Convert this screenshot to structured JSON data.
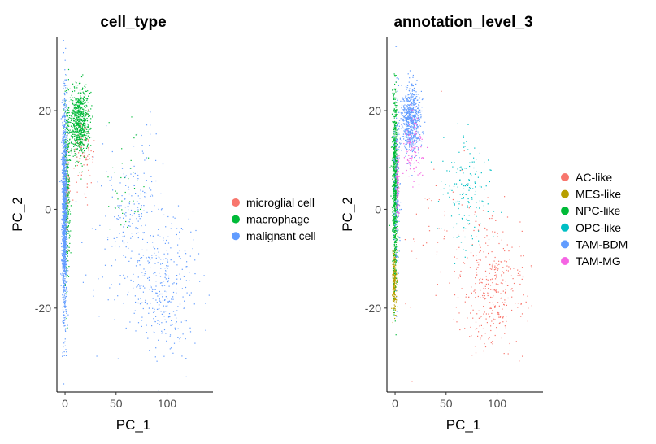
{
  "chart_data": [
    {
      "type": "scatter",
      "title": "cell_type",
      "xlabel": "PC_1",
      "ylabel": "PC_2",
      "x_ticks": [
        0,
        50,
        100
      ],
      "y_ticks": [
        20,
        0,
        -20
      ],
      "xlim": [
        -8,
        145
      ],
      "ylim": [
        -37,
        35
      ],
      "grid": false,
      "legend_position": "right",
      "series": [
        {
          "name": "microglial cell",
          "color": "#F8766D",
          "clusters": [
            {
              "x": 1,
              "y": 3,
              "sx": 1.5,
              "sy": 5,
              "n": 120
            },
            {
              "x": 17,
              "y": 12,
              "sx": 5,
              "sy": 3.5,
              "n": 90
            }
          ]
        },
        {
          "name": "macrophage",
          "color": "#00BA38",
          "clusters": [
            {
              "x": 14,
              "y": 18,
              "sx": 5,
              "sy": 3.5,
              "n": 700
            },
            {
              "x": 1.5,
              "y": 5,
              "sx": 1.5,
              "sy": 9,
              "n": 350
            },
            {
              "x": 60,
              "y": 6,
              "sx": 12,
              "sy": 5,
              "n": 40
            }
          ]
        },
        {
          "name": "malignant cell",
          "color": "#619CFF",
          "clusters": [
            {
              "x": -1,
              "y": 0,
              "sx": 1.2,
              "sy": 11,
              "n": 1300
            },
            {
              "x": 97,
              "y": -16,
              "sx": 15,
              "sy": 7,
              "n": 330
            },
            {
              "x": 68,
              "y": 1,
              "sx": 14,
              "sy": 7,
              "n": 140
            },
            {
              "x": 45,
              "y": -8,
              "sx": 18,
              "sy": 10,
              "n": 60
            }
          ]
        }
      ]
    },
    {
      "type": "scatter",
      "title": "annotation_level_3",
      "xlabel": "PC_1",
      "ylabel": "PC_2",
      "x_ticks": [
        0,
        50,
        100
      ],
      "y_ticks": [
        20,
        0,
        -20
      ],
      "xlim": [
        -8,
        145
      ],
      "ylim": [
        -37,
        35
      ],
      "grid": false,
      "legend_position": "right",
      "series": [
        {
          "name": "AC-like",
          "color": "#F8766D",
          "clusters": [
            {
              "x": 97,
              "y": -16,
              "sx": 15,
              "sy": 7,
              "n": 330
            },
            {
              "x": 45,
              "y": -8,
              "sx": 18,
              "sy": 10,
              "n": 60
            }
          ]
        },
        {
          "name": "MES-like",
          "color": "#B79F00",
          "clusters": [
            {
              "x": -1,
              "y": -14,
              "sx": 1,
              "sy": 3,
              "n": 250
            }
          ]
        },
        {
          "name": "NPC-like",
          "color": "#00BA38",
          "clusters": [
            {
              "x": -0.5,
              "y": 5,
              "sx": 1.2,
              "sy": 9,
              "n": 800
            }
          ]
        },
        {
          "name": "OPC-like",
          "color": "#00BFC4",
          "clusters": [
            {
              "x": 68,
              "y": 4,
              "sx": 13,
              "sy": 6,
              "n": 160
            }
          ]
        },
        {
          "name": "TAM-BDM",
          "color": "#619CFF",
          "clusters": [
            {
              "x": 15,
              "y": 18,
              "sx": 5,
              "sy": 3.5,
              "n": 700
            },
            {
              "x": 1.5,
              "y": 5,
              "sx": 1.5,
              "sy": 9,
              "n": 150
            }
          ]
        },
        {
          "name": "TAM-MG",
          "color": "#F564E3",
          "clusters": [
            {
              "x": 17,
              "y": 12,
              "sx": 5,
              "sy": 3.5,
              "n": 100
            },
            {
              "x": 2,
              "y": 5,
              "sx": 0.8,
              "sy": 4,
              "n": 80
            }
          ]
        }
      ]
    }
  ]
}
